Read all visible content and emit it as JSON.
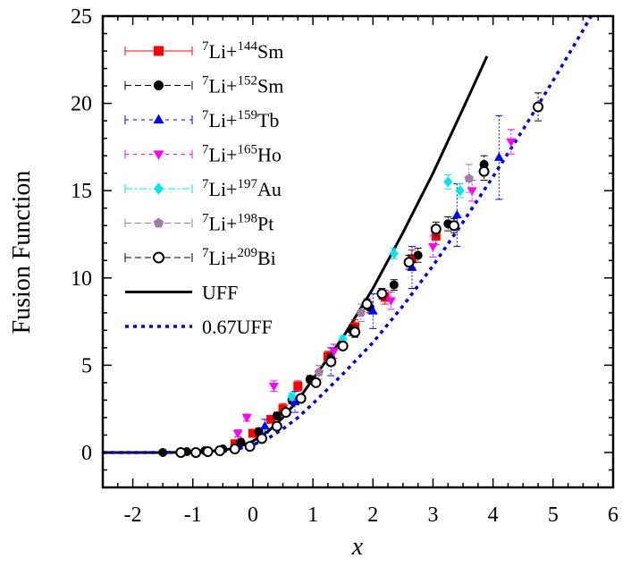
{
  "chart_data": {
    "type": "scatter",
    "xlabel": "x",
    "ylabel": "Fusion Function",
    "xlim": [
      -2.5,
      6
    ],
    "ylim": [
      -2,
      25
    ],
    "xticks": [
      -2,
      -1,
      0,
      1,
      2,
      3,
      4,
      5,
      6
    ],
    "yticks": [
      0,
      5,
      10,
      15,
      20,
      25
    ],
    "xtick_labels": [
      "-2",
      "-1",
      "0",
      "1",
      "2",
      "3",
      "4",
      "5",
      "6"
    ],
    "ytick_labels": [
      "0",
      "5",
      "10",
      "15",
      "20",
      "25"
    ],
    "grid": false,
    "legend_position": "top-left",
    "series": [
      {
        "name": "7Li+144Sm",
        "label_parts": [
          "7",
          "Li+",
          "144",
          "Sm"
        ],
        "color": "#ff0000",
        "marker": "square",
        "dash": "solid",
        "x": [
          -0.3,
          0.0,
          0.3,
          0.5,
          0.75,
          1.25,
          1.7,
          2.2,
          2.65,
          3.05
        ],
        "y": [
          0.5,
          1.1,
          1.9,
          2.5,
          3.8,
          5.5,
          7.2,
          8.9,
          11.1,
          12.4
        ],
        "err": [
          0.2,
          0.2,
          0.2,
          0.3,
          0.3,
          0.3,
          0.4,
          0.4,
          0.5,
          0.5
        ]
      },
      {
        "name": "7Li+152Sm",
        "label_parts": [
          "7",
          "Li+",
          "152",
          "Sm"
        ],
        "color": "#000000",
        "marker": "circle",
        "dash": "dash",
        "x": [
          -1.5,
          -1.1,
          -0.8,
          -0.5,
          -0.2,
          0.1,
          0.4,
          0.65,
          0.95,
          1.3,
          1.65,
          1.95,
          2.35,
          2.75,
          3.25,
          3.85
        ],
        "y": [
          0.0,
          0.05,
          0.1,
          0.2,
          0.6,
          1.2,
          2.1,
          3.0,
          4.2,
          5.4,
          7.0,
          8.3,
          9.6,
          11.3,
          13.1,
          16.5
        ],
        "err": [
          0.1,
          0.1,
          0.1,
          0.1,
          0.1,
          0.2,
          0.2,
          0.2,
          0.2,
          0.3,
          0.3,
          0.3,
          0.3,
          0.4,
          0.4,
          0.5
        ]
      },
      {
        "name": "7Li+159Tb",
        "label_parts": [
          "7",
          "Li+",
          "159",
          "Tb"
        ],
        "color": "#0000ff",
        "marker": "triangle-up",
        "dash": "dot",
        "x": [
          0.2,
          0.7,
          1.3,
          2.0,
          2.65,
          3.4,
          4.1
        ],
        "y": [
          1.5,
          2.9,
          5.2,
          8.1,
          10.6,
          13.6,
          16.9
        ],
        "err": [
          0.4,
          0.6,
          0.8,
          1.0,
          1.2,
          1.8,
          2.4
        ]
      },
      {
        "name": "7Li+165Ho",
        "label_parts": [
          "7",
          "Li+",
          "165",
          "Ho"
        ],
        "color": "#ff00ff",
        "marker": "triangle-down",
        "dash": "dot",
        "x": [
          -0.25,
          -0.1,
          0.35,
          1.35,
          2.3,
          3.0,
          3.65,
          4.3
        ],
        "y": [
          1.1,
          2.0,
          3.8,
          5.8,
          8.7,
          11.8,
          15.0,
          17.8
        ],
        "err": [
          0.2,
          0.2,
          0.3,
          0.4,
          0.5,
          0.6,
          0.6,
          0.7
        ]
      },
      {
        "name": "7Li+197Au",
        "label_parts": [
          "7",
          "Li+",
          "197",
          "Au"
        ],
        "color": "#00e5ee",
        "marker": "diamond",
        "dash": "dashdot",
        "x": [
          0.65,
          1.5,
          2.35,
          3.25,
          3.45
        ],
        "y": [
          3.2,
          6.5,
          11.4,
          15.5,
          15.0
        ],
        "err": [
          0.2,
          0.2,
          0.3,
          0.4,
          0.4
        ]
      },
      {
        "name": "7Li+198Pt",
        "label_parts": [
          "7",
          "Li+",
          "198",
          "Pt"
        ],
        "color": "#a37ba3",
        "marker": "pentagon",
        "dash": "dash",
        "x": [
          1.1,
          1.8,
          3.6
        ],
        "y": [
          4.6,
          8.0,
          15.7
        ],
        "err": [
          0.4,
          0.5,
          0.8
        ]
      },
      {
        "name": "7Li+209Bi",
        "label_parts": [
          "7",
          "Li+",
          "209",
          "Bi"
        ],
        "color": "#000000",
        "marker": "open-circle",
        "dash": "dash",
        "x": [
          -1.2,
          -0.95,
          -0.75,
          -0.55,
          -0.3,
          -0.05,
          0.15,
          0.4,
          0.55,
          0.8,
          1.05,
          1.3,
          1.5,
          1.7,
          1.9,
          2.15,
          2.6,
          3.05,
          3.35,
          3.85,
          4.75
        ],
        "y": [
          0.0,
          0.0,
          0.05,
          0.1,
          0.2,
          0.35,
          0.8,
          1.5,
          2.3,
          3.1,
          4.0,
          5.2,
          6.1,
          6.9,
          8.5,
          9.1,
          10.9,
          12.8,
          13.0,
          16.1,
          19.8
        ],
        "err": [
          0.1,
          0.1,
          0.1,
          0.1,
          0.1,
          0.1,
          0.1,
          0.2,
          0.2,
          0.2,
          0.2,
          0.2,
          0.2,
          0.3,
          0.3,
          0.3,
          0.4,
          0.4,
          0.4,
          0.5,
          0.8
        ]
      },
      {
        "name": "UFF",
        "type": "line",
        "color": "#000000",
        "dash": "solid",
        "width": 3,
        "x": [
          -2.5,
          -1.5,
          -1.0,
          -0.5,
          -0.25,
          0.0,
          0.25,
          0.5,
          0.75,
          1.0,
          1.5,
          2.0,
          2.5,
          3.0,
          3.5,
          3.9
        ],
        "y": [
          0.0,
          0.0,
          0.01,
          0.12,
          0.3,
          0.65,
          1.2,
          2.0,
          3.0,
          4.2,
          6.6,
          9.4,
          12.6,
          16.0,
          19.7,
          22.7
        ]
      },
      {
        "name": "0.67UFF",
        "type": "line",
        "color": "#0000dd",
        "dash": "dot",
        "width": 3.5,
        "x": [
          -2.5,
          -1.5,
          -1.0,
          -0.5,
          -0.25,
          0.0,
          0.25,
          0.5,
          0.75,
          1.0,
          1.5,
          2.0,
          2.5,
          3.0,
          3.5,
          4.0,
          4.5,
          5.0,
          5.5,
          6.0
        ],
        "y": [
          0.0,
          0.0,
          0.01,
          0.08,
          0.2,
          0.44,
          0.8,
          1.35,
          2.0,
          2.8,
          4.5,
          6.3,
          8.4,
          10.7,
          13.2,
          15.8,
          18.5,
          21.3,
          24.2,
          27.2
        ]
      }
    ]
  }
}
